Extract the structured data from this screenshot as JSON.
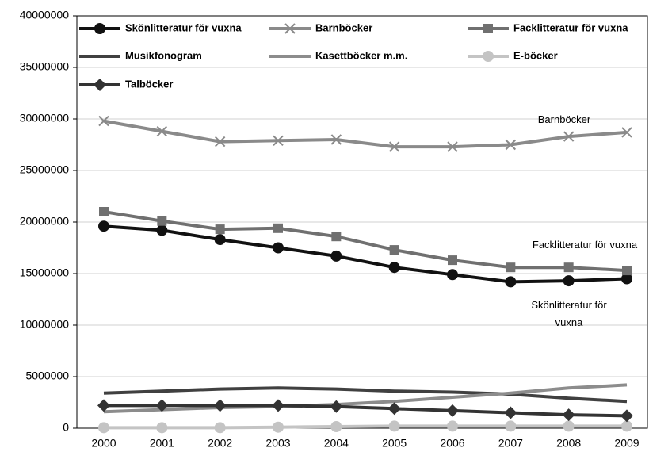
{
  "chart_data": {
    "type": "line",
    "categories": [
      "2000",
      "2001",
      "2002",
      "2003",
      "2004",
      "2005",
      "2006",
      "2007",
      "2008",
      "2009"
    ],
    "series": [
      {
        "name": "Skönlitteratur för vuxna",
        "color": "#111111",
        "marker": "circle",
        "values": [
          19600000,
          19200000,
          18300000,
          17500000,
          16700000,
          15600000,
          14900000,
          14200000,
          14300000,
          14500000
        ]
      },
      {
        "name": "Barnböcker",
        "color": "#8a8a8a",
        "marker": "x",
        "values": [
          29800000,
          28800000,
          27800000,
          27900000,
          28000000,
          27300000,
          27300000,
          27500000,
          28300000,
          28700000
        ]
      },
      {
        "name": "Facklitteratur för vuxna",
        "color": "#707070",
        "marker": "square",
        "values": [
          21000000,
          20100000,
          19300000,
          19400000,
          18600000,
          17300000,
          16300000,
          15600000,
          15600000,
          15300000
        ]
      },
      {
        "name": "Musikfonogram",
        "color": "#404040",
        "marker": null,
        "values": [
          3400000,
          3600000,
          3800000,
          3900000,
          3800000,
          3600000,
          3500000,
          3300000,
          2900000,
          2600000
        ]
      },
      {
        "name": "Kasettböcker m.m.",
        "color": "#8c8c8c",
        "marker": null,
        "values": [
          1600000,
          1800000,
          2000000,
          2100000,
          2300000,
          2600000,
          3000000,
          3400000,
          3900000,
          4200000
        ]
      },
      {
        "name": "E-böcker",
        "color": "#c4c4c4",
        "marker": "circle",
        "values": [
          50000,
          50000,
          50000,
          100000,
          150000,
          200000,
          200000,
          200000,
          200000,
          200000
        ]
      },
      {
        "name": "Talböcker",
        "color": "#333333",
        "marker": "diamond",
        "values": [
          2200000,
          2200000,
          2200000,
          2200000,
          2100000,
          1900000,
          1700000,
          1500000,
          1300000,
          1200000
        ]
      }
    ],
    "ylim": [
      0,
      40000000
    ],
    "yticks": [
      0,
      5000000,
      10000000,
      15000000,
      20000000,
      25000000,
      30000000,
      35000000,
      40000000
    ],
    "grid": true,
    "legend": "top",
    "annotations": [
      {
        "text": "Barnböcker",
        "series": 1
      },
      {
        "text": "Facklitteratur för vuxna",
        "series": 2
      },
      {
        "text": "Skönlitteratur för vuxna",
        "series": 0
      }
    ]
  }
}
